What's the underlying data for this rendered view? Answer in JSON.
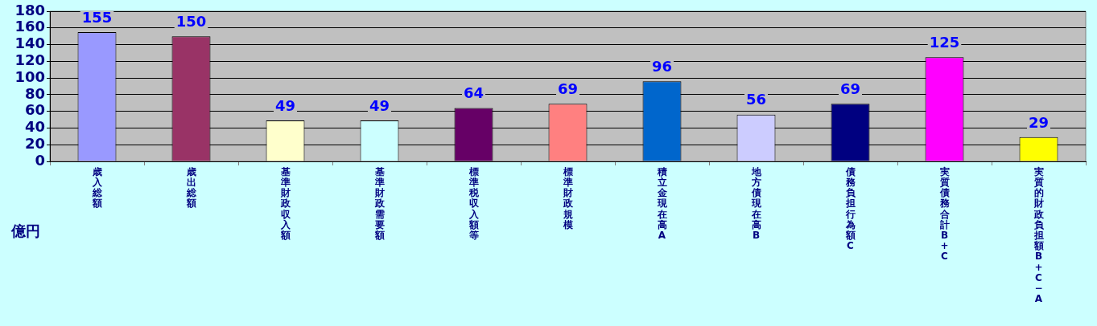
{
  "chart_data": {
    "type": "bar",
    "ylabel": "億円",
    "categories": [
      "歳入総額",
      "歳出総額",
      "基準財政収入額",
      "基準財政需要額",
      "標準税収入額等",
      "標準財政規模",
      "積立金現在高A",
      "地方債現在高B",
      "債務負担行為額C",
      "実質債務合計B+C",
      "実質的財政負担額B+C−A"
    ],
    "values": [
      155,
      150,
      49,
      49,
      64,
      69,
      96,
      56,
      69,
      125,
      29
    ],
    "colors": [
      "#9999ff",
      "#993366",
      "#ffffcc",
      "#ccffff",
      "#660066",
      "#ff8080",
      "#0066cc",
      "#ccccff",
      "#000080",
      "#ff00ff",
      "#ffff00"
    ],
    "ylim": [
      0,
      180
    ],
    "yticks": [
      0,
      20,
      40,
      60,
      80,
      100,
      120,
      140,
      160,
      180
    ],
    "grid": "y",
    "data_labels": true
  }
}
